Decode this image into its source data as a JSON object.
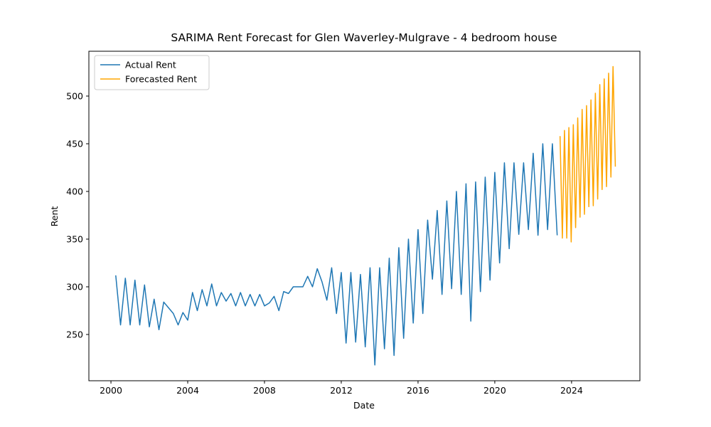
{
  "chart_data": {
    "type": "line",
    "title": "SARIMA Rent Forecast for Glen Waverley-Mulgrave - 4 bedroom house",
    "x_label": "Date",
    "y_label": "Rent",
    "xlim": [
      1998.85,
      2027.56
    ],
    "ylim": [
      201.5,
      547
    ],
    "xticks": [
      2000,
      2004,
      2008,
      2012,
      2016,
      2020,
      2024
    ],
    "yticks": [
      250,
      300,
      350,
      400,
      450,
      500
    ],
    "legend": "upper left",
    "series": [
      {
        "name": "Actual Rent",
        "color": "#1f77b4",
        "x": [
          2000.25,
          2000.5,
          2000.75,
          2001,
          2001.25,
          2001.5,
          2001.75,
          2002,
          2002.25,
          2002.5,
          2002.75,
          2003,
          2003.25,
          2003.5,
          2003.75,
          2004,
          2004.25,
          2004.5,
          2004.75,
          2005,
          2005.25,
          2005.5,
          2005.75,
          2006,
          2006.25,
          2006.5,
          2006.75,
          2007,
          2007.25,
          2007.5,
          2007.75,
          2008,
          2008.25,
          2008.5,
          2008.75,
          2009,
          2009.25,
          2009.5,
          2009.75,
          2010,
          2010.25,
          2010.5,
          2010.75,
          2011,
          2011.25,
          2011.5,
          2011.75,
          2012,
          2012.25,
          2012.5,
          2012.75,
          2013,
          2013.25,
          2013.5,
          2013.75,
          2014,
          2014.25,
          2014.5,
          2014.75,
          2015,
          2015.25,
          2015.5,
          2015.75,
          2016,
          2016.25,
          2016.5,
          2016.75,
          2017,
          2017.25,
          2017.5,
          2017.75,
          2018,
          2018.25,
          2018.5,
          2018.75,
          2019,
          2019.25,
          2019.5,
          2019.75,
          2020,
          2020.25,
          2020.5,
          2020.75,
          2021,
          2021.25,
          2021.5,
          2021.75,
          2022,
          2022.25,
          2022.5,
          2022.75,
          2023,
          2023.25
        ],
        "values": [
          312,
          260,
          309,
          260,
          307,
          260,
          302,
          258,
          287,
          255,
          284,
          278,
          272,
          260,
          273,
          265,
          294,
          275,
          297,
          280,
          303,
          280,
          294,
          285,
          293,
          280,
          294,
          280,
          292,
          280,
          292,
          280,
          283,
          290,
          275,
          295,
          293,
          300,
          300,
          300,
          311,
          300,
          319,
          305,
          286,
          320,
          272,
          315,
          241,
          315,
          242,
          313,
          237,
          320,
          218,
          320,
          235,
          330,
          228,
          341,
          246,
          350,
          262,
          360,
          272,
          370,
          308,
          380,
          292,
          390,
          298,
          400,
          292,
          408,
          264,
          410,
          295,
          415,
          307,
          420,
          325,
          430,
          340,
          430,
          355,
          430,
          360,
          440,
          354,
          450,
          360,
          450,
          354
        ]
      },
      {
        "name": "Forecasted Rent",
        "color": "#ffa500",
        "x": [
          2023.4,
          2023.52,
          2023.63,
          2023.75,
          2023.86,
          2023.98,
          2024.09,
          2024.21,
          2024.32,
          2024.44,
          2024.55,
          2024.67,
          2024.78,
          2024.9,
          2025.01,
          2025.13,
          2025.24,
          2025.36,
          2025.47,
          2025.59,
          2025.7,
          2025.82,
          2025.93,
          2026.05,
          2026.16,
          2026.28
        ],
        "values": [
          458,
          351,
          464,
          351,
          467,
          347,
          470,
          362,
          477,
          373,
          486,
          376,
          490,
          384,
          496,
          385,
          503,
          392,
          512,
          402,
          518,
          405,
          524,
          415,
          531,
          426
        ]
      }
    ]
  }
}
